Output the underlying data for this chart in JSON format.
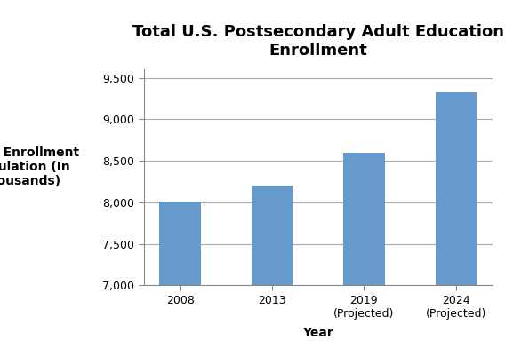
{
  "title": "Total U.S. Postsecondary Adult Education\nEnrollment",
  "xlabel": "Year",
  "ylabel": "Adult Enrollment\nPopulation (In\nThousands)",
  "categories": [
    "2008",
    "2013",
    "2019\n(Projected)",
    "2024\n(Projected)"
  ],
  "values": [
    8010,
    8200,
    8600,
    9330
  ],
  "bar_color": "#6699cc",
  "ylim": [
    7000,
    9600
  ],
  "yticks": [
    7000,
    7500,
    8000,
    8500,
    9000,
    9500
  ],
  "ytick_labels": [
    "7,000",
    "7,500",
    "8,000",
    "8,500",
    "9,000",
    "9,500"
  ],
  "background_color": "#ffffff",
  "title_fontsize": 13,
  "axis_label_fontsize": 10,
  "tick_fontsize": 9
}
